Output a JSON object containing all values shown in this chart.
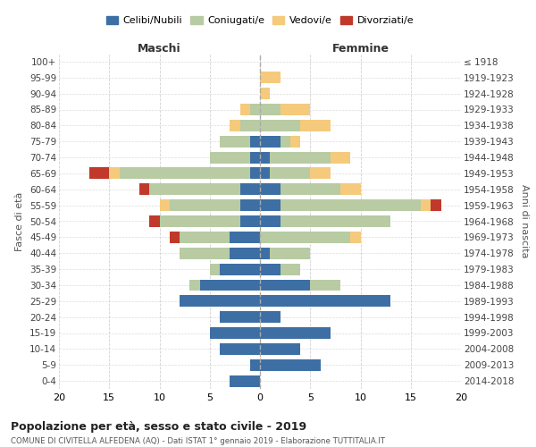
{
  "age_groups": [
    "0-4",
    "5-9",
    "10-14",
    "15-19",
    "20-24",
    "25-29",
    "30-34",
    "35-39",
    "40-44",
    "45-49",
    "50-54",
    "55-59",
    "60-64",
    "65-69",
    "70-74",
    "75-79",
    "80-84",
    "85-89",
    "90-94",
    "95-99",
    "100+"
  ],
  "birth_years": [
    "2014-2018",
    "2009-2013",
    "2004-2008",
    "1999-2003",
    "1994-1998",
    "1989-1993",
    "1984-1988",
    "1979-1983",
    "1974-1978",
    "1969-1973",
    "1964-1968",
    "1959-1963",
    "1954-1958",
    "1949-1953",
    "1944-1948",
    "1939-1943",
    "1934-1938",
    "1929-1933",
    "1924-1928",
    "1919-1923",
    "≤ 1918"
  ],
  "colors": {
    "celibi": "#3d6fa5",
    "coniugati": "#b8cba3",
    "vedovi": "#f5ca7c",
    "divorziati": "#c0392b"
  },
  "males": {
    "celibi": [
      3,
      1,
      4,
      5,
      4,
      8,
      6,
      4,
      3,
      3,
      2,
      2,
      2,
      1,
      1,
      1,
      0,
      0,
      0,
      0,
      0
    ],
    "coniugati": [
      0,
      0,
      0,
      0,
      0,
      0,
      1,
      1,
      5,
      5,
      8,
      7,
      9,
      13,
      4,
      3,
      2,
      1,
      0,
      0,
      0
    ],
    "vedovi": [
      0,
      0,
      0,
      0,
      0,
      0,
      0,
      0,
      0,
      0,
      0,
      1,
      0,
      1,
      0,
      0,
      1,
      1,
      0,
      0,
      0
    ],
    "divorziati": [
      0,
      0,
      0,
      0,
      0,
      0,
      0,
      0,
      0,
      1,
      1,
      0,
      1,
      2,
      0,
      0,
      0,
      0,
      0,
      0,
      0
    ]
  },
  "females": {
    "celibi": [
      0,
      6,
      4,
      7,
      2,
      13,
      5,
      2,
      1,
      0,
      2,
      2,
      2,
      1,
      1,
      2,
      0,
      0,
      0,
      0,
      0
    ],
    "coniugati": [
      0,
      0,
      0,
      0,
      0,
      0,
      3,
      2,
      4,
      9,
      11,
      14,
      6,
      4,
      6,
      1,
      4,
      2,
      0,
      0,
      0
    ],
    "vedovi": [
      0,
      0,
      0,
      0,
      0,
      0,
      0,
      0,
      0,
      1,
      0,
      1,
      2,
      2,
      2,
      1,
      3,
      3,
      1,
      2,
      0
    ],
    "divorziati": [
      0,
      0,
      0,
      0,
      0,
      0,
      0,
      0,
      0,
      0,
      0,
      1,
      0,
      0,
      0,
      0,
      0,
      0,
      0,
      0,
      0
    ]
  },
  "title": "Popolazione per età, sesso e stato civile - 2019",
  "subtitle": "COMUNE DI CIVITELLA ALFEDENA (AQ) - Dati ISTAT 1° gennaio 2019 - Elaborazione TUTTITALIA.IT",
  "xlabel_left": "Maschi",
  "xlabel_right": "Femmine",
  "ylabel_left": "Fasce di età",
  "ylabel_right": "Anni di nascita",
  "xlim": 20,
  "legend_labels": [
    "Celibi/Nubili",
    "Coniugati/e",
    "Vedovi/e",
    "Divorziati/e"
  ],
  "background_color": "#ffffff",
  "grid_color": "#cccccc"
}
